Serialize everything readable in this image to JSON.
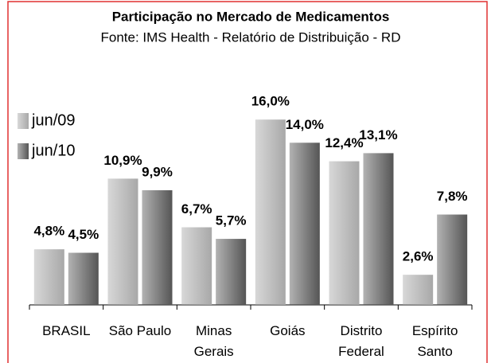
{
  "chart_data": {
    "type": "bar",
    "title": "Participação no Mercado de Medicamentos",
    "subtitle": "Fonte: IMS Health - Relatório de Distribuição - RD",
    "categories": [
      "BRASIL",
      "São Paulo",
      "Minas Gerais",
      "Goiás",
      "Distrito Federal",
      "Espírito Santo"
    ],
    "series": [
      {
        "name": "jun/09",
        "color": "#a8a8a8",
        "values": [
          4.8,
          10.9,
          6.7,
          16.0,
          12.4,
          2.6
        ],
        "value_labels": [
          "4,8%",
          "10,9%",
          "6,7%",
          "16,0%",
          "12,4%",
          "2,6%"
        ]
      },
      {
        "name": "jun/10",
        "color": "#555555",
        "values": [
          4.5,
          9.9,
          5.7,
          14.0,
          13.1,
          7.8
        ],
        "value_labels": [
          "4,5%",
          "9,9%",
          "5,7%",
          "14,0%",
          "13,1%",
          "7,8%"
        ]
      }
    ],
    "legend": "left"
  }
}
